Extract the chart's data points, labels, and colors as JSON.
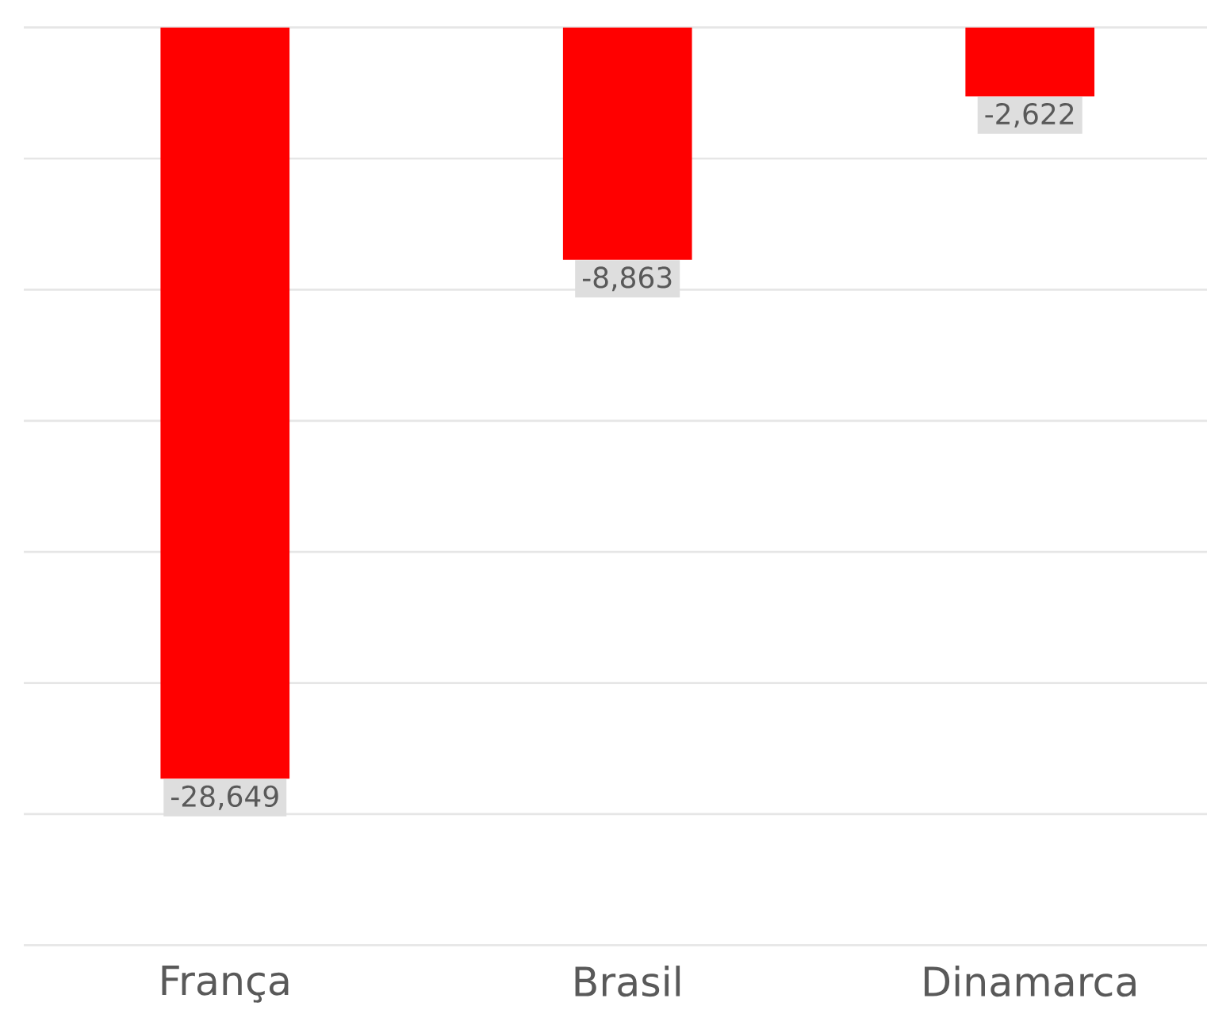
{
  "chart_data": {
    "type": "bar",
    "categories": [
      "França",
      "Brasil",
      "Dinamarca"
    ],
    "values": [
      -28649,
      -8863,
      -2622
    ],
    "value_labels": [
      "-28,649",
      "-8,863",
      "-2,622"
    ],
    "color": "#ff0000",
    "grid": "y",
    "tick_labels": "x"
  }
}
